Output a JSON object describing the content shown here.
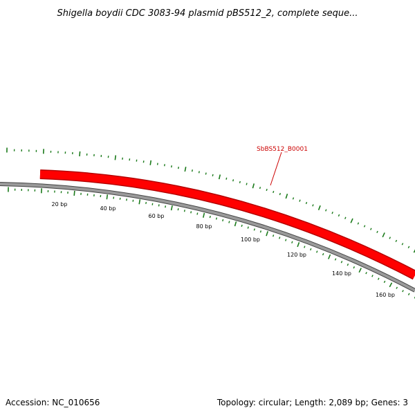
{
  "title": "Shigella boydii CDC 3083-94 plasmid pBS512_2, complete seque...",
  "accession": "Accession: NC_010656",
  "summary": "Topology: circular; Length: 2,089 bp; Genes: 3",
  "colors": {
    "gene": "#ff0000",
    "gene_dark": "#b40000",
    "backbone": "#808080",
    "tick": "#1a7a1a",
    "label": "#cc0000"
  },
  "ticks": {
    "inner_labels": [
      "20 bp",
      "40 bp",
      "60 bp",
      "80 bp",
      "100 bp",
      "120 bp",
      "140 bp",
      "160 bp"
    ]
  },
  "genes": [
    {
      "name": "SbBS512_B0001"
    }
  ]
}
